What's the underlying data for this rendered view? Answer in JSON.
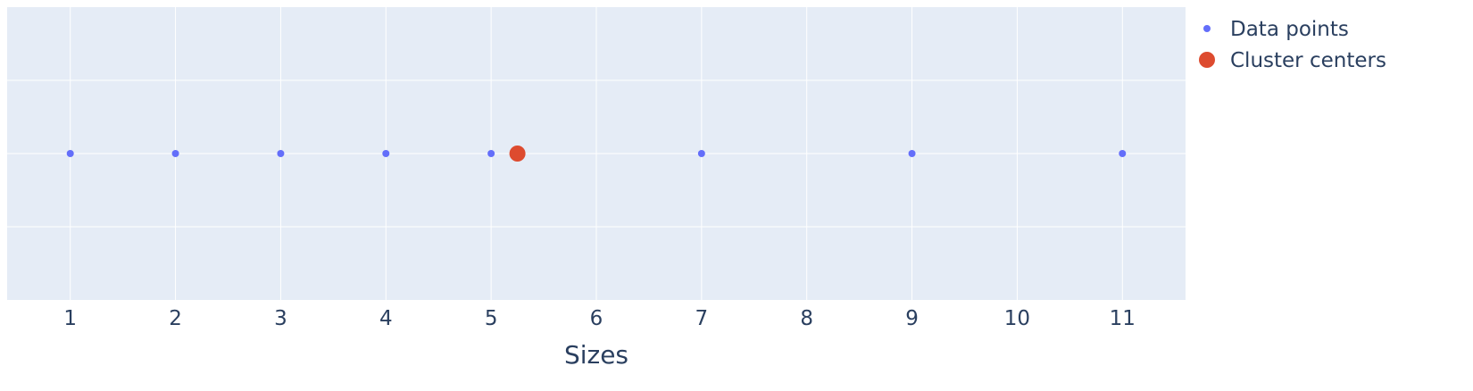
{
  "chart_data": {
    "type": "scatter",
    "title": "",
    "xlabel": "Sizes",
    "ylabel": "",
    "xlim": [
      0.4,
      11.6
    ],
    "ylim": [
      -1,
      1
    ],
    "grid": true,
    "legend_position": "top-right",
    "x_ticks": [
      1,
      2,
      3,
      4,
      5,
      6,
      7,
      8,
      9,
      10,
      11
    ],
    "y_gridlines": [
      -1,
      -0.5,
      0,
      0.5,
      1
    ],
    "colors": {
      "plot_background": "#e5ecf6",
      "grid": "#ffffff",
      "text": "#2a3f5f"
    },
    "series": [
      {
        "name": "Data points",
        "marker": "small-circle",
        "color": "#636efa",
        "points": [
          {
            "x": 1,
            "y": 0
          },
          {
            "x": 2,
            "y": 0
          },
          {
            "x": 3,
            "y": 0
          },
          {
            "x": 4,
            "y": 0
          },
          {
            "x": 5,
            "y": 0
          },
          {
            "x": 7,
            "y": 0
          },
          {
            "x": 9,
            "y": 0
          },
          {
            "x": 11,
            "y": 0
          }
        ]
      },
      {
        "name": "Cluster centers",
        "marker": "large-circle",
        "color": "#dd4b2f",
        "points": [
          {
            "x": 5.25,
            "y": 0
          }
        ]
      }
    ]
  }
}
